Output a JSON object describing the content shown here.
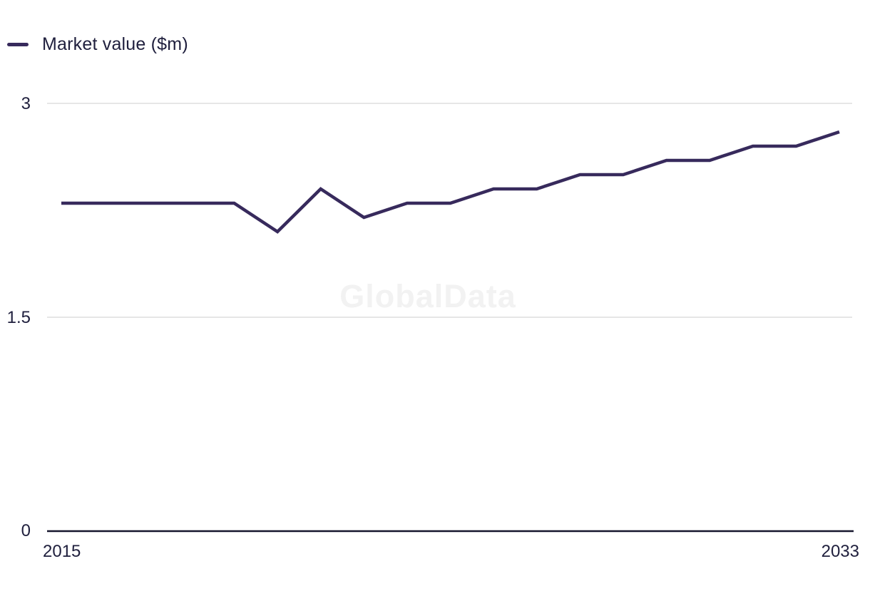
{
  "watermark": "GlobalData",
  "legend": {
    "label": "Market value ($m)"
  },
  "colors": {
    "series": "#372a5c",
    "axis_text": "#1f1f3d",
    "gridline": "#dedede",
    "axis_line": "#16162d",
    "watermark": "#f2f2f2",
    "background": "#ffffff"
  },
  "chart_data": {
    "type": "line",
    "title": "",
    "x": [
      2015,
      2016,
      2017,
      2018,
      2019,
      2020,
      2021,
      2022,
      2023,
      2024,
      2025,
      2026,
      2027,
      2028,
      2029,
      2030,
      2031,
      2032,
      2033
    ],
    "series": [
      {
        "name": "Market value ($m)",
        "color": "#372a5c",
        "values": [
          2.3,
          2.3,
          2.3,
          2.3,
          2.3,
          2.1,
          2.4,
          2.2,
          2.3,
          2.3,
          2.4,
          2.4,
          2.5,
          2.5,
          2.6,
          2.6,
          2.7,
          2.7,
          2.8
        ]
      }
    ],
    "xlabel": "",
    "ylabel": "Market value ($m)",
    "xlim": [
      2015,
      2033
    ],
    "ylim": [
      0,
      3
    ],
    "yticks": [
      0,
      1.5,
      3
    ],
    "ytick_labels": [
      "0",
      "1.5",
      "3"
    ],
    "xtick_labels": [
      "2015",
      "2033"
    ],
    "grid": "horizontal-only",
    "legend_position": "top-left",
    "watermark_text": "GlobalData"
  }
}
